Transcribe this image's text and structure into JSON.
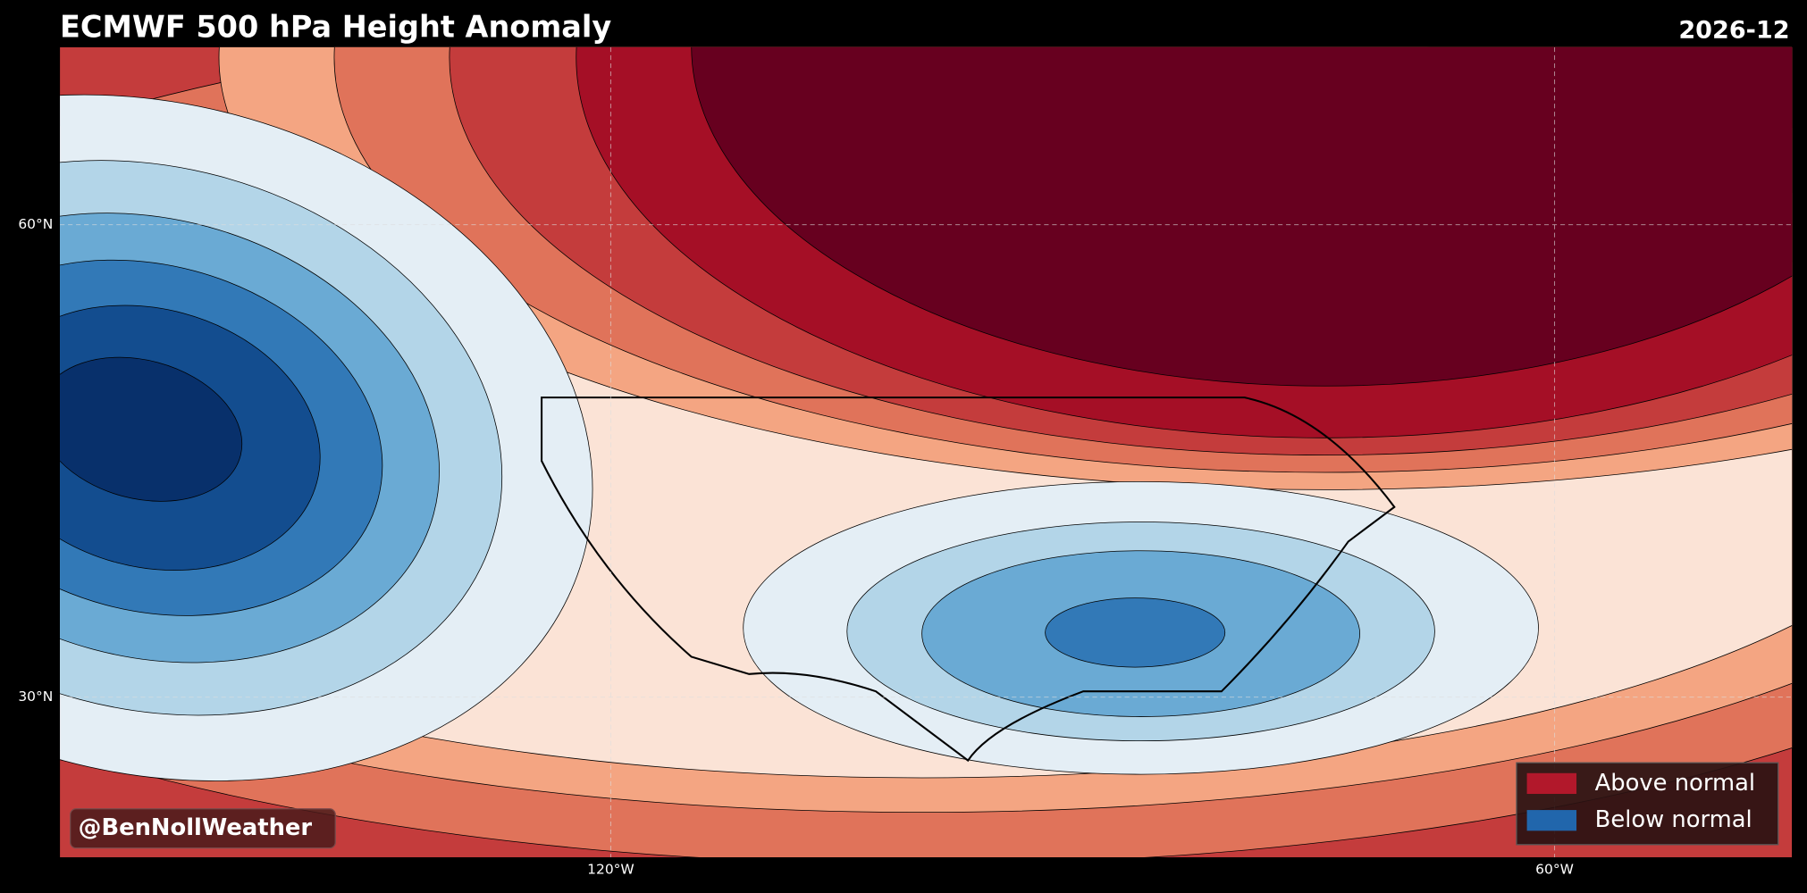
{
  "header": {
    "title": "ECMWF 500 hPa Height Anomaly",
    "date": "2026-12"
  },
  "axes": {
    "lat_labels": [
      "60°N",
      "30°N"
    ],
    "lon_labels": [
      "120°W",
      "60°W"
    ]
  },
  "legend": {
    "items": [
      {
        "label": "Above normal",
        "color": "#b2182b"
      },
      {
        "label": "Below normal",
        "color": "#2166ac"
      }
    ]
  },
  "watermark": "@BenNollWeather"
}
